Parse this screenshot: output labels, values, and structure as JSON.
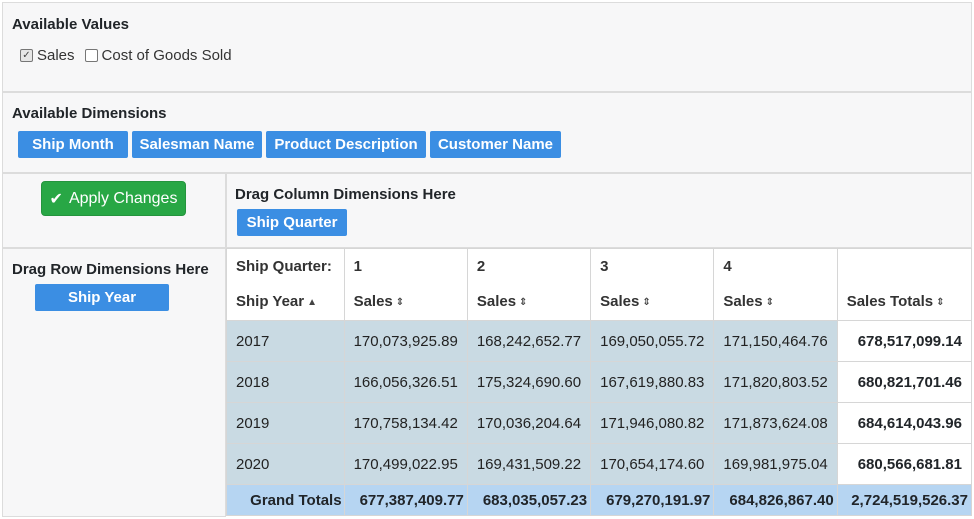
{
  "values_panel": {
    "title": "Available Values",
    "options": [
      {
        "label": "Sales",
        "checked": true
      },
      {
        "label": "Cost of Goods Sold",
        "checked": false
      }
    ]
  },
  "dimensions_panel": {
    "title": "Available Dimensions",
    "items": [
      "Ship Month",
      "Salesman Name",
      "Product Description",
      "Customer Name"
    ]
  },
  "apply_button": {
    "label": "Apply Changes",
    "icon": "check-icon"
  },
  "column_zone": {
    "title": "Drag Column Dimensions Here",
    "items": [
      "Ship Quarter"
    ]
  },
  "row_zone": {
    "title": "Drag Row Dimensions Here",
    "items": [
      "Ship Year"
    ]
  },
  "pivot": {
    "column_dim_label": "Ship Quarter:",
    "row_dim_label": "Ship Year",
    "row_sort_icon": "▲",
    "measure_sort_icon": "⇕",
    "quarters": [
      "1",
      "2",
      "3",
      "4"
    ],
    "measure_label": "Sales",
    "totals_label": "Sales Totals",
    "rows": [
      {
        "year": "2017",
        "values": [
          "170,073,925.89",
          "168,242,652.77",
          "169,050,055.72",
          "171,150,464.76"
        ],
        "total": "678,517,099.14"
      },
      {
        "year": "2018",
        "values": [
          "166,056,326.51",
          "175,324,690.60",
          "167,619,880.83",
          "171,820,803.52"
        ],
        "total": "680,821,701.46"
      },
      {
        "year": "2019",
        "values": [
          "170,758,134.42",
          "170,036,204.64",
          "171,946,080.82",
          "171,873,624.08"
        ],
        "total": "684,614,043.96"
      },
      {
        "year": "2020",
        "values": [
          "170,499,022.95",
          "169,431,509.22",
          "170,654,174.60",
          "169,981,975.04"
        ],
        "total": "680,566,681.81"
      }
    ],
    "grand": {
      "label": "Grand Totals",
      "values": [
        "677,387,409.77",
        "683,035,057.23",
        "679,270,191.97",
        "684,826,867.40"
      ],
      "total": "2,724,519,526.37"
    }
  },
  "colors": {
    "dimension_chip": "#3b8ee3",
    "apply_button": "#28a745",
    "data_cell": "#c9dae3",
    "grand_total_row": "#b6d5f2"
  }
}
